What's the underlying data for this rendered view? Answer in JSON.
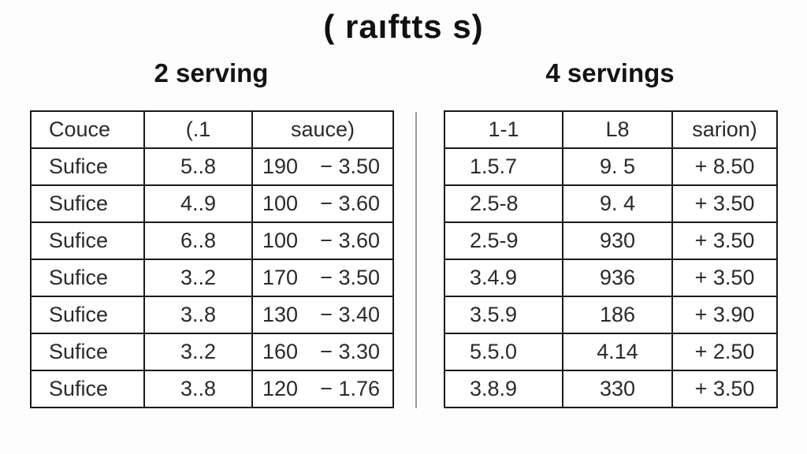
{
  "page": {
    "title": "( raıftts s)"
  },
  "sections": {
    "left": {
      "heading": "2 serving",
      "headers": [
        "Couce",
        "(.1",
        "sauce)"
      ],
      "rows": [
        {
          "c1": "Sufice",
          "c2": "5..8",
          "c3a": "190",
          "c3b": "− 3.50"
        },
        {
          "c1": "Sufice",
          "c2": "4..9",
          "c3a": "100",
          "c3b": "− 3.60"
        },
        {
          "c1": "Sufice",
          "c2": "6..8",
          "c3a": "100",
          "c3b": "− 3.60"
        },
        {
          "c1": "Sufice",
          "c2": "3..2",
          "c3a": "170",
          "c3b": "− 3.50"
        },
        {
          "c1": "Sufice",
          "c2": "3..8",
          "c3a": "130",
          "c3b": "− 3.40"
        },
        {
          "c1": "Sufice",
          "c2": "3..2",
          "c3a": "160",
          "c3b": "− 3.30"
        },
        {
          "c1": "Sufice",
          "c2": "3..8",
          "c3a": "120",
          "c3b": "− 1.76"
        }
      ]
    },
    "right": {
      "heading": "4 servings",
      "headers": [
        "1-1",
        "L8",
        "sarion)"
      ],
      "rows": [
        {
          "c1": "1.5.7",
          "c2": "9. 5",
          "c3": "+ 8.50"
        },
        {
          "c1": "2.5-8",
          "c2": "9. 4",
          "c3": "+ 3.50"
        },
        {
          "c1": "2.5-9",
          "c2": "930",
          "c3": "+ 3.50"
        },
        {
          "c1": "3.4.9",
          "c2": "936",
          "c3": "+ 3.50"
        },
        {
          "c1": "3.5.9",
          "c2": "186",
          "c3": "+ 3.90"
        },
        {
          "c1": "5.5.0",
          "c2": "4.14",
          "c3": "+ 2.50"
        },
        {
          "c1": "3.8.9",
          "c2": "330",
          "c3": "+ 3.50"
        }
      ]
    }
  },
  "colors": {
    "background": "#fdfdfd",
    "table_border": "#1a1a1a",
    "text": "#2a2a2a",
    "divider": "#9a9a9a"
  }
}
